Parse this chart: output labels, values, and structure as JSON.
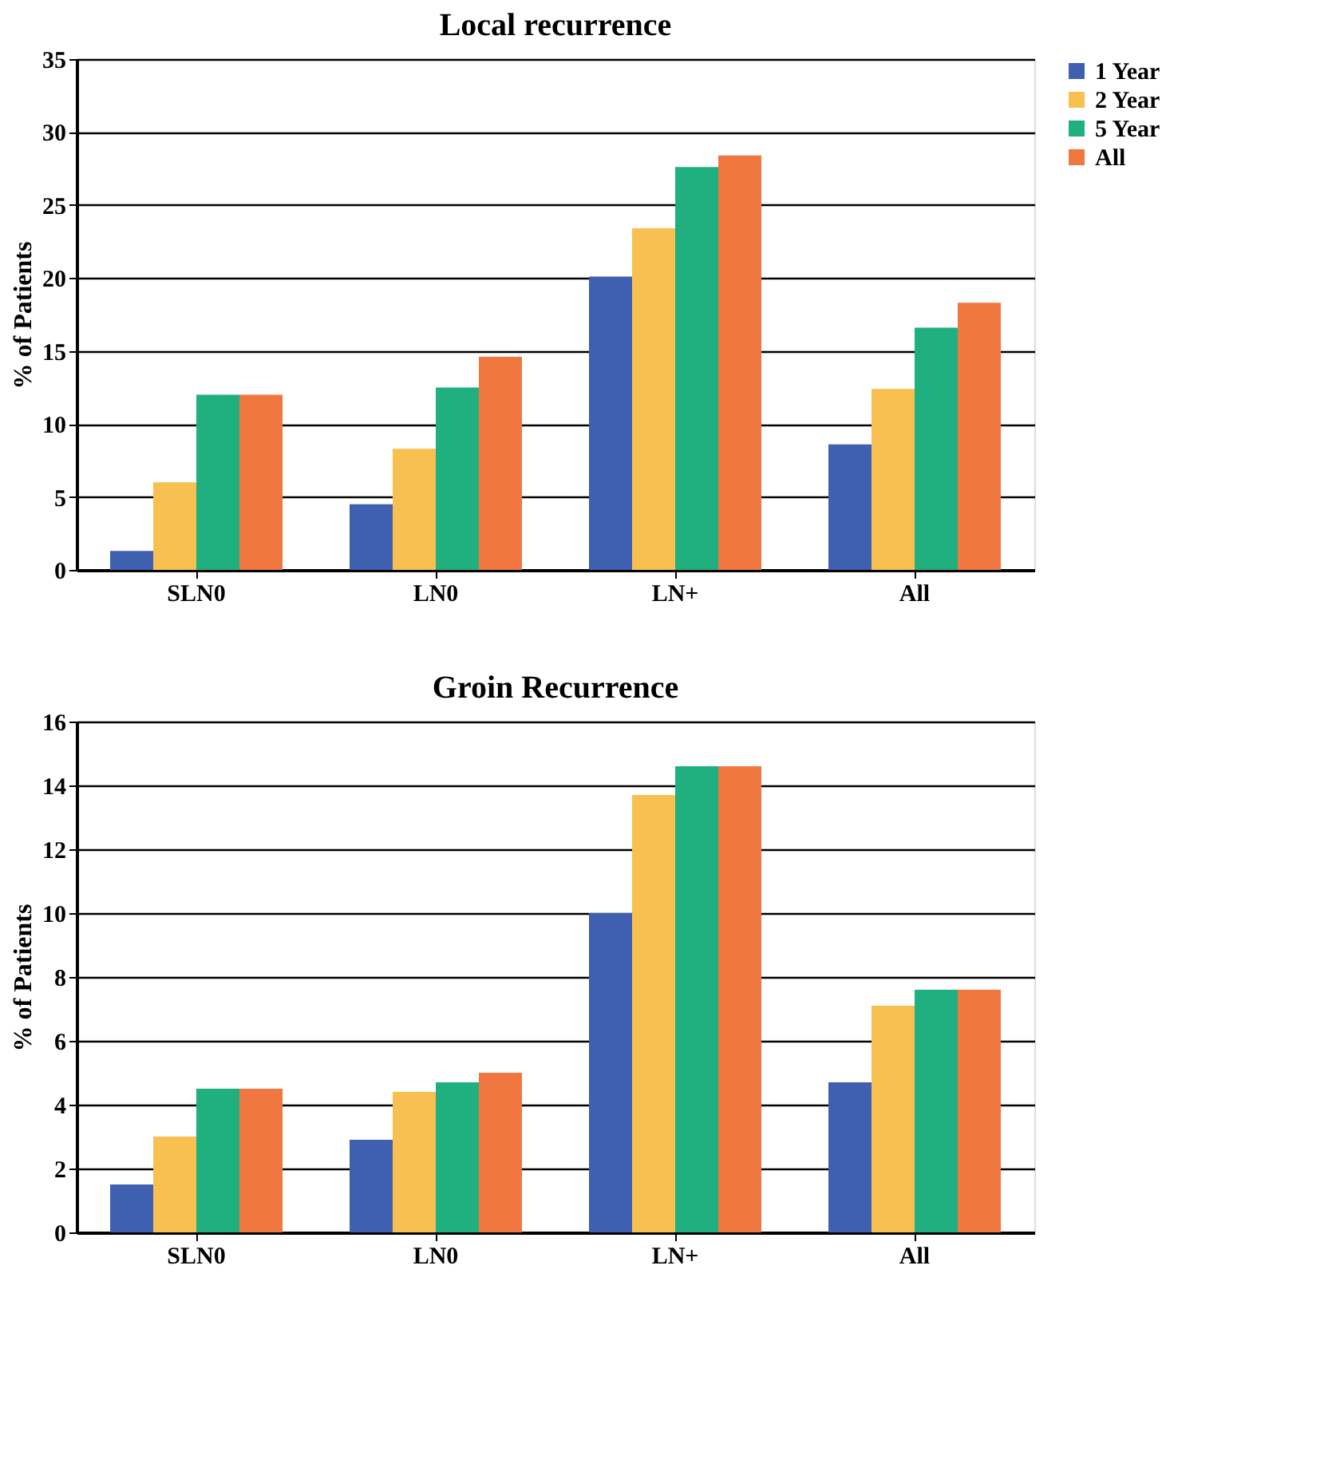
{
  "chart_data": [
    {
      "type": "bar",
      "title": "Local recurrence",
      "ylabel": "% of Patients",
      "categories": [
        "SLN0",
        "LN0",
        "LN+",
        "All"
      ],
      "ylim": [
        0,
        35
      ],
      "yticks": [
        0,
        5,
        10,
        15,
        20,
        25,
        30,
        35
      ],
      "grid": "y",
      "legend": "right",
      "series": [
        {
          "name": "1 Year",
          "color": "#3f5fb0",
          "values": [
            1.3,
            4.5,
            20.1,
            8.6
          ]
        },
        {
          "name": "2 Year",
          "color": "#f8c050",
          "values": [
            6.0,
            8.3,
            23.4,
            12.4
          ]
        },
        {
          "name": "5 Year",
          "color": "#20b080",
          "values": [
            12.0,
            12.5,
            27.6,
            16.6
          ]
        },
        {
          "name": "All",
          "color": "#f07840",
          "values": [
            12.0,
            14.6,
            28.4,
            18.3
          ]
        }
      ]
    },
    {
      "type": "bar",
      "title": "Groin Recurrence",
      "ylabel": "% of Patients",
      "categories": [
        "SLN0",
        "LN0",
        "LN+",
        "All"
      ],
      "ylim": [
        0,
        16
      ],
      "yticks": [
        0,
        2,
        4,
        6,
        8,
        10,
        12,
        14,
        16
      ],
      "grid": "y",
      "legend": "right",
      "series": [
        {
          "name": "1 Year",
          "color": "#3f5fb0",
          "values": [
            1.5,
            2.9,
            10.0,
            4.7
          ]
        },
        {
          "name": "2 Year",
          "color": "#f8c050",
          "values": [
            3.0,
            4.4,
            13.7,
            7.1
          ]
        },
        {
          "name": "5 Year",
          "color": "#20b080",
          "values": [
            4.5,
            4.7,
            14.6,
            7.6
          ]
        },
        {
          "name": "All",
          "color": "#f07840",
          "values": [
            4.5,
            5.0,
            14.6,
            7.6
          ]
        }
      ]
    }
  ]
}
